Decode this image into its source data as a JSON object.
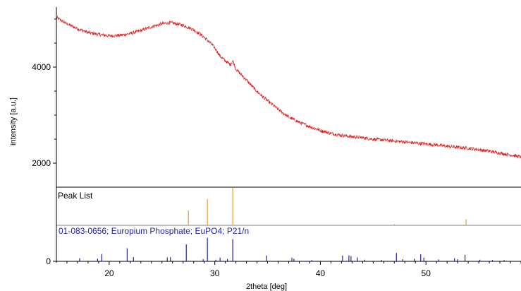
{
  "chart_data": {
    "type": "line",
    "xlabel": "2theta [deg]",
    "ylabel": "intensity [a.u.]",
    "xlim": [
      15,
      59
    ],
    "ylim": [
      1500,
      5250
    ],
    "x_ticks": [
      20,
      30,
      40,
      50
    ],
    "x_tick_labels": [
      "20",
      "30",
      "40",
      "50"
    ],
    "y_ticks": [
      2000,
      4000
    ],
    "y_tick_labels": [
      "2000",
      "4000"
    ],
    "bottom_tick_label": "0",
    "grid": false,
    "colors": {
      "pattern": "#e02020",
      "peak_list": "#e0a030",
      "reference": "#2020b0",
      "baseline": "#808080",
      "axis": "#000000"
    },
    "series": [
      {
        "style": "noisy-line",
        "noise_amplitude": 35,
        "x": [
          15.0,
          16.0,
          17.0,
          18.0,
          19.0,
          20.0,
          21.0,
          22.0,
          23.0,
          24.0,
          25.0,
          25.5,
          26.0,
          27.0,
          28.0,
          28.5,
          29.0,
          29.5,
          30.0,
          30.5,
          31.0,
          31.5,
          31.7,
          32.0,
          33.0,
          34.0,
          35.0,
          36.0,
          37.0,
          38.0,
          39.0,
          40.0,
          41.0,
          42.0,
          43.0,
          44.0,
          45.0,
          46.0,
          47.0,
          48.0,
          49.0,
          50.0,
          51.0,
          52.0,
          53.0,
          54.0,
          55.0,
          56.0,
          57.0,
          58.0,
          59.0
        ],
        "y": [
          5030,
          4900,
          4800,
          4720,
          4680,
          4650,
          4660,
          4700,
          4760,
          4840,
          4900,
          4920,
          4920,
          4870,
          4780,
          4700,
          4620,
          4520,
          4400,
          4230,
          4130,
          4050,
          4140,
          3960,
          3730,
          3490,
          3300,
          3120,
          2960,
          2850,
          2760,
          2680,
          2620,
          2580,
          2550,
          2530,
          2500,
          2480,
          2460,
          2440,
          2420,
          2400,
          2380,
          2350,
          2330,
          2310,
          2280,
          2250,
          2210,
          2170,
          2130
        ]
      }
    ],
    "peak_list": {
      "label": "Peak List",
      "peaks": [
        {
          "x": 27.5,
          "h": 0.4
        },
        {
          "x": 29.3,
          "h": 0.7
        },
        {
          "x": 31.7,
          "h": 1.0
        },
        {
          "x": 47.0,
          "h": 0.03
        },
        {
          "x": 53.8,
          "h": 0.16
        }
      ]
    },
    "reference": {
      "label": "01-083-0656; Europium Phosphate; EuPO4; P21/n",
      "peaks": [
        {
          "x": 17.2,
          "h": 0.12
        },
        {
          "x": 18.9,
          "h": 0.1
        },
        {
          "x": 19.3,
          "h": 0.28
        },
        {
          "x": 21.7,
          "h": 0.5
        },
        {
          "x": 22.3,
          "h": 0.16
        },
        {
          "x": 25.5,
          "h": 0.15
        },
        {
          "x": 25.8,
          "h": 0.16
        },
        {
          "x": 27.3,
          "h": 0.65
        },
        {
          "x": 28.9,
          "h": 0.08
        },
        {
          "x": 29.3,
          "h": 0.9
        },
        {
          "x": 30.1,
          "h": 0.06
        },
        {
          "x": 30.5,
          "h": 0.14
        },
        {
          "x": 31.2,
          "h": 0.09
        },
        {
          "x": 31.7,
          "h": 0.85
        },
        {
          "x": 34.9,
          "h": 0.22
        },
        {
          "x": 37.3,
          "h": 0.14
        },
        {
          "x": 37.5,
          "h": 0.1
        },
        {
          "x": 39.2,
          "h": 0.05
        },
        {
          "x": 42.1,
          "h": 0.22
        },
        {
          "x": 42.7,
          "h": 0.23
        },
        {
          "x": 42.9,
          "h": 0.2
        },
        {
          "x": 43.5,
          "h": 0.15
        },
        {
          "x": 44.2,
          "h": 0.06
        },
        {
          "x": 45.8,
          "h": 0.05
        },
        {
          "x": 47.2,
          "h": 0.32
        },
        {
          "x": 47.8,
          "h": 0.08
        },
        {
          "x": 48.9,
          "h": 0.1
        },
        {
          "x": 49.5,
          "h": 0.27
        },
        {
          "x": 49.8,
          "h": 0.14
        },
        {
          "x": 51.2,
          "h": 0.07
        },
        {
          "x": 52.7,
          "h": 0.12
        },
        {
          "x": 53.0,
          "h": 0.08
        },
        {
          "x": 53.7,
          "h": 0.25
        },
        {
          "x": 55.1,
          "h": 0.06
        },
        {
          "x": 56.3,
          "h": 0.05
        },
        {
          "x": 57.4,
          "h": 0.05
        }
      ]
    }
  }
}
